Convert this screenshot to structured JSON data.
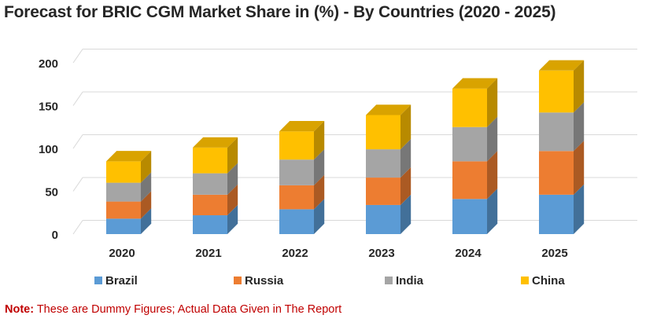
{
  "chart_data": {
    "type": "bar",
    "stacked": true,
    "style": "3d",
    "title": "Forecast for BRIC CGM Market Share in (%) - By Countries (2020 - 2025)",
    "categories": [
      "2020",
      "2021",
      "2022",
      "2023",
      "2024",
      "2025"
    ],
    "series": [
      {
        "name": "Brazil",
        "values": [
          18,
          22,
          29,
          34,
          41,
          46
        ]
      },
      {
        "name": "Russia",
        "values": [
          20,
          24,
          28,
          32,
          44,
          51
        ]
      },
      {
        "name": "India",
        "values": [
          22,
          25,
          30,
          33,
          40,
          45
        ]
      },
      {
        "name": "China",
        "values": [
          25,
          30,
          33,
          40,
          45,
          49
        ]
      }
    ],
    "yticks": [
      "0",
      "50",
      "100",
      "150",
      "200"
    ],
    "ylim": [
      0,
      200
    ],
    "grid": true,
    "legend_position": "bottom",
    "colors": {
      "Brazil": "#5b9bd5",
      "Russia": "#ed7d31",
      "India": "#a5a5a5",
      "China": "#ffc000"
    }
  },
  "note": {
    "label": "Note:",
    "text": " These are Dummy Figures; Actual Data Given in The Report"
  }
}
